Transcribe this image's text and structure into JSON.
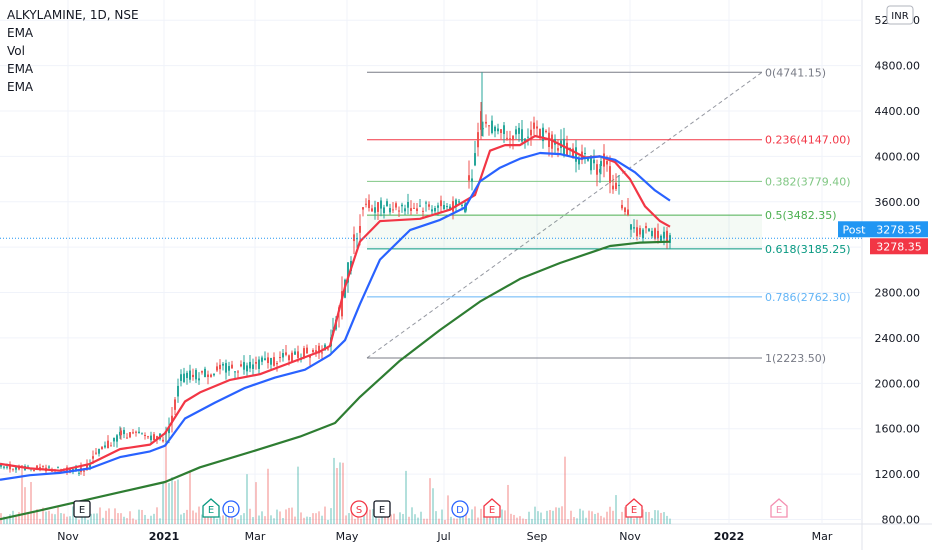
{
  "chart_data": {
    "type": "candlestick",
    "symbol_line": "ALKYLAMINE, 1D, NSE",
    "indicators": [
      "EMA",
      "Vol",
      "EMA",
      "EMA"
    ],
    "currency_badge": "INR",
    "y_ticks": [
      "5200.00",
      "4800.00",
      "4400.00",
      "4000.00",
      "3600.00",
      "3200.00",
      "2800.00",
      "2400.00",
      "2000.00",
      "1600.00",
      "1200.00",
      "800.00"
    ],
    "y_range": [
      760,
      5330
    ],
    "x_ticks": [
      "Nov",
      "2021",
      "Mar",
      "May",
      "Jul",
      "Sep",
      "Nov",
      "2022",
      "Mar"
    ],
    "last_price": "3278.35",
    "post_label": "Post",
    "post_price": "3278.35",
    "fibonacci": {
      "levels": [
        {
          "label": "0(4741.15)",
          "value": 4741.15,
          "color": "#787b86"
        },
        {
          "label": "0.236(4147.00)",
          "value": 4147.0,
          "color": "#f23645"
        },
        {
          "label": "0.382(3779.40)",
          "value": 3779.4,
          "color": "#81c784"
        },
        {
          "label": "0.5(3482.35)",
          "value": 3482.35,
          "color": "#4caf50"
        },
        {
          "label": "0.618(3185.25)",
          "value": 3185.25,
          "color": "#089981"
        },
        {
          "label": "0.786(2762.30)",
          "value": 2762.3,
          "color": "#64b5f6"
        },
        {
          "label": "1(2223.50)",
          "value": 2223.5,
          "color": "#787b86"
        }
      ]
    },
    "series": [
      {
        "name": "EMA fast",
        "color": "#f23645",
        "points": [
          [
            0,
            1290
          ],
          [
            30,
            1250
          ],
          [
            60,
            1230
          ],
          [
            90,
            1290
          ],
          [
            120,
            1420
          ],
          [
            150,
            1460
          ],
          [
            165,
            1560
          ],
          [
            185,
            1840
          ],
          [
            200,
            1920
          ],
          [
            230,
            2030
          ],
          [
            260,
            2080
          ],
          [
            290,
            2180
          ],
          [
            320,
            2280
          ],
          [
            330,
            2330
          ],
          [
            345,
            2850
          ],
          [
            360,
            3250
          ],
          [
            380,
            3430
          ],
          [
            420,
            3450
          ],
          [
            450,
            3530
          ],
          [
            475,
            3660
          ],
          [
            490,
            4050
          ],
          [
            505,
            4100
          ],
          [
            520,
            4100
          ],
          [
            535,
            4180
          ],
          [
            550,
            4150
          ],
          [
            570,
            4060
          ],
          [
            585,
            3990
          ],
          [
            600,
            4000
          ],
          [
            615,
            3950
          ],
          [
            630,
            3800
          ],
          [
            645,
            3560
          ],
          [
            660,
            3430
          ],
          [
            670,
            3380
          ]
        ]
      },
      {
        "name": "EMA mid",
        "color": "#2962ff",
        "points": [
          [
            0,
            1150
          ],
          [
            30,
            1190
          ],
          [
            60,
            1210
          ],
          [
            90,
            1250
          ],
          [
            120,
            1350
          ],
          [
            150,
            1400
          ],
          [
            165,
            1450
          ],
          [
            185,
            1690
          ],
          [
            215,
            1830
          ],
          [
            245,
            1960
          ],
          [
            275,
            2050
          ],
          [
            305,
            2120
          ],
          [
            330,
            2250
          ],
          [
            345,
            2380
          ],
          [
            360,
            2700
          ],
          [
            380,
            3090
          ],
          [
            410,
            3350
          ],
          [
            440,
            3440
          ],
          [
            465,
            3550
          ],
          [
            480,
            3780
          ],
          [
            500,
            3900
          ],
          [
            520,
            3980
          ],
          [
            540,
            4030
          ],
          [
            560,
            4020
          ],
          [
            580,
            3980
          ],
          [
            600,
            4000
          ],
          [
            615,
            3970
          ],
          [
            635,
            3860
          ],
          [
            655,
            3700
          ],
          [
            670,
            3610
          ]
        ]
      },
      {
        "name": "EMA slow",
        "color": "#2e7d32",
        "points": [
          [
            0,
            802
          ],
          [
            40,
            880
          ],
          [
            80,
            960
          ],
          [
            120,
            1040
          ],
          [
            165,
            1130
          ],
          [
            200,
            1260
          ],
          [
            260,
            1420
          ],
          [
            300,
            1530
          ],
          [
            335,
            1650
          ],
          [
            360,
            1880
          ],
          [
            400,
            2200
          ],
          [
            440,
            2470
          ],
          [
            480,
            2720
          ],
          [
            520,
            2920
          ],
          [
            560,
            3060
          ],
          [
            590,
            3150
          ],
          [
            610,
            3210
          ],
          [
            640,
            3240
          ],
          [
            670,
            3248
          ]
        ]
      }
    ],
    "candle_segments": [
      {
        "x0": 0,
        "x1": 80,
        "v0": 1270,
        "v1": 1230,
        "noise": 50
      },
      {
        "x0": 80,
        "x1": 120,
        "v0": 1230,
        "v1": 1560,
        "noise": 90
      },
      {
        "x0": 120,
        "x1": 165,
        "v0": 1560,
        "v1": 1520,
        "noise": 70
      },
      {
        "x0": 165,
        "x1": 180,
        "v0": 1520,
        "v1": 2020,
        "noise": 150
      },
      {
        "x0": 180,
        "x1": 300,
        "v0": 2050,
        "v1": 2250,
        "noise": 110
      },
      {
        "x0": 300,
        "x1": 332,
        "v0": 2250,
        "v1": 2360,
        "noise": 120
      },
      {
        "x0": 332,
        "x1": 362,
        "v0": 2360,
        "v1": 3560,
        "noise": 260
      },
      {
        "x0": 362,
        "x1": 465,
        "v0": 3560,
        "v1": 3560,
        "noise": 120
      },
      {
        "x0": 465,
        "x1": 482,
        "v0": 3600,
        "v1": 4400,
        "noise": 220
      },
      {
        "x0": 482,
        "x1": 530,
        "v0": 4300,
        "v1": 4150,
        "noise": 140
      },
      {
        "x0": 530,
        "x1": 600,
        "v0": 4250,
        "v1": 3900,
        "noise": 170
      },
      {
        "x0": 600,
        "x1": 630,
        "v0": 4000,
        "v1": 3450,
        "noise": 180
      },
      {
        "x0": 630,
        "x1": 670,
        "v0": 3350,
        "v1": 3290,
        "noise": 120
      }
    ],
    "event_markers": [
      {
        "letter": "E",
        "color": "#131722"
      },
      {
        "letter": "E",
        "color": "#089981"
      },
      {
        "letter": "D",
        "color": "#2962ff"
      },
      {
        "letter": "S",
        "color": "#f23645"
      },
      {
        "letter": "E",
        "color": "#131722"
      },
      {
        "letter": "D",
        "color": "#2962ff"
      },
      {
        "letter": "E",
        "color": "#f23645"
      },
      {
        "letter": "E",
        "color": "#f23645"
      },
      {
        "letter": "E",
        "color": "#f48fb1"
      }
    ],
    "colors": {
      "up": "#26a69a",
      "down": "#ef5350",
      "grid": "#f0f3fa",
      "post": "#2196f3",
      "last": "#f23645",
      "trend": "#9598a1"
    }
  }
}
